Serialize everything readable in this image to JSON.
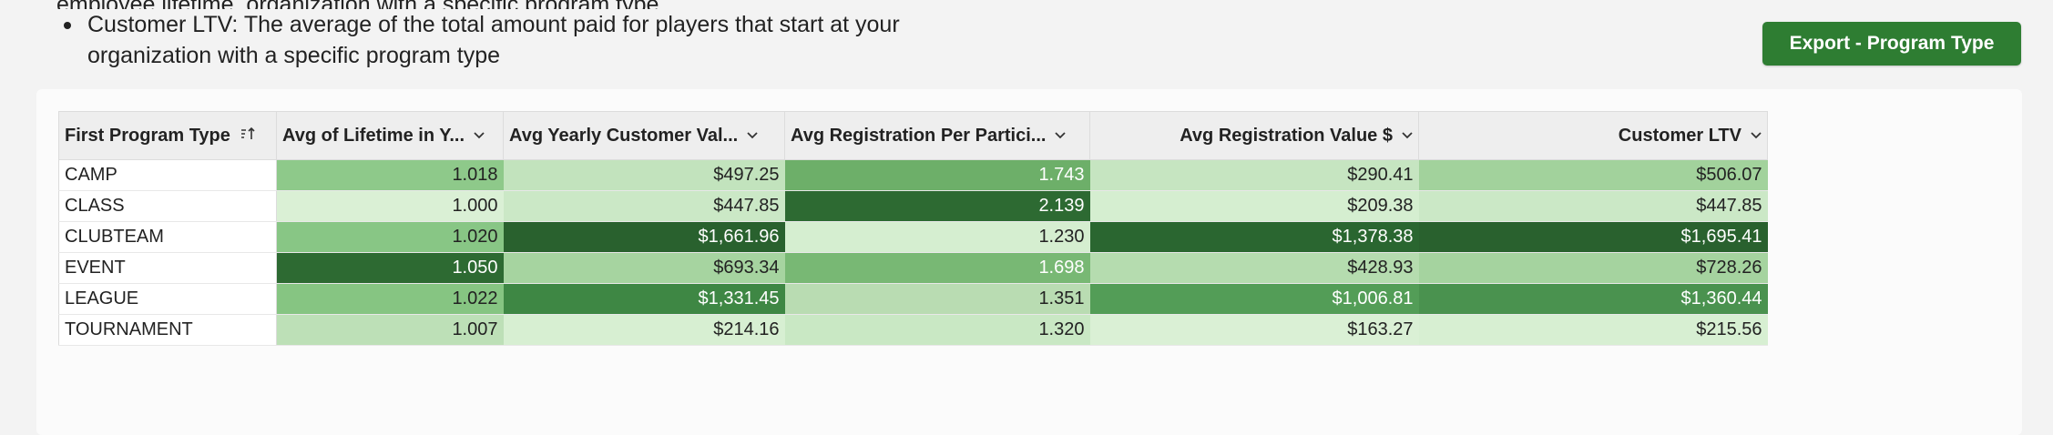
{
  "description": {
    "partial_line": "employee lifetime, organization with a specific program type",
    "bullet_line1": "Customer LTV: The average of the total amount paid for players that start at your",
    "bullet_line2": "organization with a specific program type"
  },
  "toolbar": {
    "export_label": "Export - Program Type"
  },
  "table": {
    "columns": [
      {
        "label": "First Program Type",
        "sort_icon": "sort-ascending-icon",
        "align": "left"
      },
      {
        "label": "Avg of Lifetime in Y...",
        "menu_icon": "chevron-down-icon",
        "align": "left"
      },
      {
        "label": "Avg Yearly Customer Val...",
        "menu_icon": "chevron-down-icon",
        "align": "left"
      },
      {
        "label": "Avg Registration Per Partici...",
        "menu_icon": "chevron-down-icon",
        "align": "left"
      },
      {
        "label": "Avg Registration Value $",
        "menu_icon": "chevron-down-icon",
        "align": "right"
      },
      {
        "label": "Customer LTV",
        "menu_icon": "chevron-down-icon",
        "align": "right"
      }
    ],
    "rows": [
      {
        "type": "CAMP",
        "lifetime": "1.018",
        "yearly_value": "$497.25",
        "reg_per_participant": "1.743",
        "reg_value": "$290.41",
        "ltv": "$506.07"
      },
      {
        "type": "CLASS",
        "lifetime": "1.000",
        "yearly_value": "$447.85",
        "reg_per_participant": "2.139",
        "reg_value": "$209.38",
        "ltv": "$447.85"
      },
      {
        "type": "CLUBTEAM",
        "lifetime": "1.020",
        "yearly_value": "$1,661.96",
        "reg_per_participant": "1.230",
        "reg_value": "$1,378.38",
        "ltv": "$1,695.41"
      },
      {
        "type": "EVENT",
        "lifetime": "1.050",
        "yearly_value": "$693.34",
        "reg_per_participant": "1.698",
        "reg_value": "$428.93",
        "ltv": "$728.26"
      },
      {
        "type": "LEAGUE",
        "lifetime": "1.022",
        "yearly_value": "$1,331.45",
        "reg_per_participant": "1.351",
        "reg_value": "$1,006.81",
        "ltv": "$1,360.44"
      },
      {
        "type": "TOURNAMENT",
        "lifetime": "1.007",
        "yearly_value": "$214.16",
        "reg_per_participant": "1.320",
        "reg_value": "$163.27",
        "ltv": "$215.56"
      }
    ],
    "cell_colors": [
      [
        "#8ec98a",
        "#c2e3bd",
        "#6daf69",
        "#c6e5c1",
        "#a2d29c"
      ],
      [
        "#daf0d5",
        "#cbe8c6",
        "#2d6a32",
        "#d5eed0",
        "#cbe8c6"
      ],
      [
        "#88c685",
        "#29612e",
        "#d5eed0",
        "#2a6630",
        "#29612e"
      ],
      [
        "#2d6a32",
        "#a6d4a0",
        "#78b874",
        "#b5dcaf",
        "#a5d39f"
      ],
      [
        "#86c582",
        "#3e8744",
        "#b9dcb2",
        "#539d57",
        "#4a924f"
      ],
      [
        "#bde0b7",
        "#d7efd2",
        "#c9e8c4",
        "#daf0d5",
        "#d7efd2"
      ]
    ],
    "text_colors": [
      [
        "#222",
        "#222",
        "#ffffff",
        "#222",
        "#222"
      ],
      [
        "#222",
        "#222",
        "#ffffff",
        "#222",
        "#222"
      ],
      [
        "#222",
        "#ffffff",
        "#222",
        "#ffffff",
        "#ffffff"
      ],
      [
        "#ffffff",
        "#222",
        "#ffffff",
        "#222",
        "#222"
      ],
      [
        "#222",
        "#ffffff",
        "#222",
        "#ffffff",
        "#ffffff"
      ],
      [
        "#222",
        "#222",
        "#222",
        "#222",
        "#222"
      ]
    ]
  },
  "colors": {
    "export_button": "#2e7d32",
    "panel_bg": "#fbfbfb",
    "page_bg": "#f3f3f3"
  }
}
